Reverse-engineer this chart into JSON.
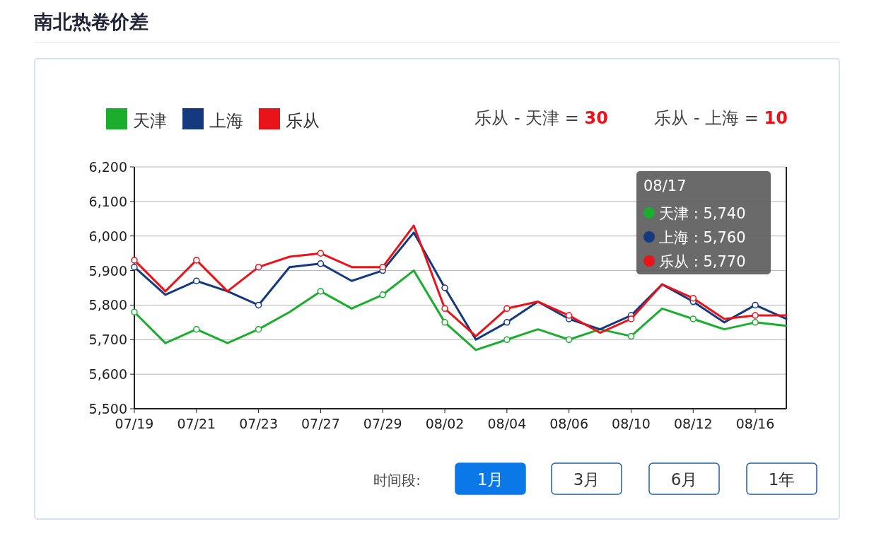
{
  "chart_data": {
    "type": "line",
    "title": "南北热卷价差",
    "categories": [
      "07/19",
      null,
      "07/21",
      null,
      "07/23",
      null,
      "07/27",
      null,
      "07/29",
      null,
      "08/02",
      null,
      "08/04",
      null,
      "08/06",
      null,
      "08/10",
      null,
      "08/12",
      null,
      "08/16",
      null
    ],
    "series": [
      {
        "name": "天津",
        "color": "#1aad2e",
        "values": [
          5780,
          5690,
          5730,
          5690,
          5730,
          5780,
          5840,
          5790,
          5830,
          5900,
          5750,
          5670,
          5700,
          5730,
          5700,
          5730,
          5710,
          5790,
          5760,
          5730,
          5750,
          5740
        ]
      },
      {
        "name": "上海",
        "color": "#14397f",
        "values": [
          5910,
          5830,
          5870,
          5840,
          5800,
          5910,
          5920,
          5870,
          5900,
          6010,
          5850,
          5700,
          5750,
          5810,
          5760,
          5730,
          5770,
          5860,
          5810,
          5750,
          5800,
          5760
        ]
      },
      {
        "name": "乐从",
        "color": "#e8141a",
        "values": [
          5930,
          5840,
          5930,
          5840,
          5910,
          5940,
          5950,
          5910,
          5910,
          6030,
          5790,
          5710,
          5790,
          5810,
          5770,
          5720,
          5760,
          5860,
          5820,
          5760,
          5770,
          5770
        ]
      }
    ],
    "ylim": [
      5500,
      6200
    ],
    "yticks": [
      {
        "value": 5500,
        "label": "5,500"
      },
      {
        "value": 5600,
        "label": "5,600"
      },
      {
        "value": 5700,
        "label": "5,700"
      },
      {
        "value": 5800,
        "label": "5,800"
      },
      {
        "value": 5900,
        "label": "5,900"
      },
      {
        "value": 6000,
        "label": "6,000"
      },
      {
        "value": 6100,
        "label": "6,100"
      },
      {
        "value": 6200,
        "label": "6,200"
      }
    ],
    "grid": "y",
    "legend": "top left",
    "marker": "circle",
    "line_style": "solid",
    "annotations": [
      "乐从 - 天津 = 30",
      "乐从 - 上海 = 10",
      "08/17",
      "天津 : 5,740",
      "上海 : 5,760",
      "乐从 : 5,770",
      "时间段:",
      "1月",
      "3月",
      "6月",
      "1年"
    ]
  }
}
